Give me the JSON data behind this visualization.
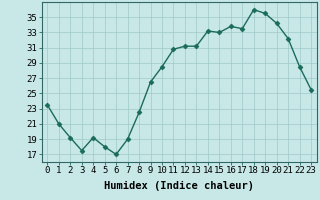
{
  "x": [
    0,
    1,
    2,
    3,
    4,
    5,
    6,
    7,
    8,
    9,
    10,
    11,
    12,
    13,
    14,
    15,
    16,
    17,
    18,
    19,
    20,
    21,
    22,
    23
  ],
  "y": [
    23.5,
    21.0,
    19.2,
    17.5,
    19.2,
    18.0,
    17.0,
    19.0,
    22.5,
    26.5,
    28.5,
    30.8,
    31.2,
    31.2,
    33.2,
    33.0,
    33.8,
    33.5,
    36.0,
    35.5,
    34.2,
    32.2,
    28.5,
    25.5
  ],
  "xlabel": "Humidex (Indice chaleur)",
  "xlim": [
    -0.5,
    23.5
  ],
  "ylim": [
    16,
    37
  ],
  "yticks": [
    17,
    19,
    21,
    23,
    25,
    27,
    29,
    31,
    33,
    35
  ],
  "xticks": [
    0,
    1,
    2,
    3,
    4,
    5,
    6,
    7,
    8,
    9,
    10,
    11,
    12,
    13,
    14,
    15,
    16,
    17,
    18,
    19,
    20,
    21,
    22,
    23
  ],
  "line_color": "#1a6b5a",
  "marker_color": "#1a6b5a",
  "bg_color": "#c8e8e8",
  "grid_color": "#a0c8c8",
  "xlabel_fontsize": 7.5,
  "tick_fontsize": 6.5,
  "marker": "D",
  "marker_size": 2.5,
  "line_width": 1.0
}
